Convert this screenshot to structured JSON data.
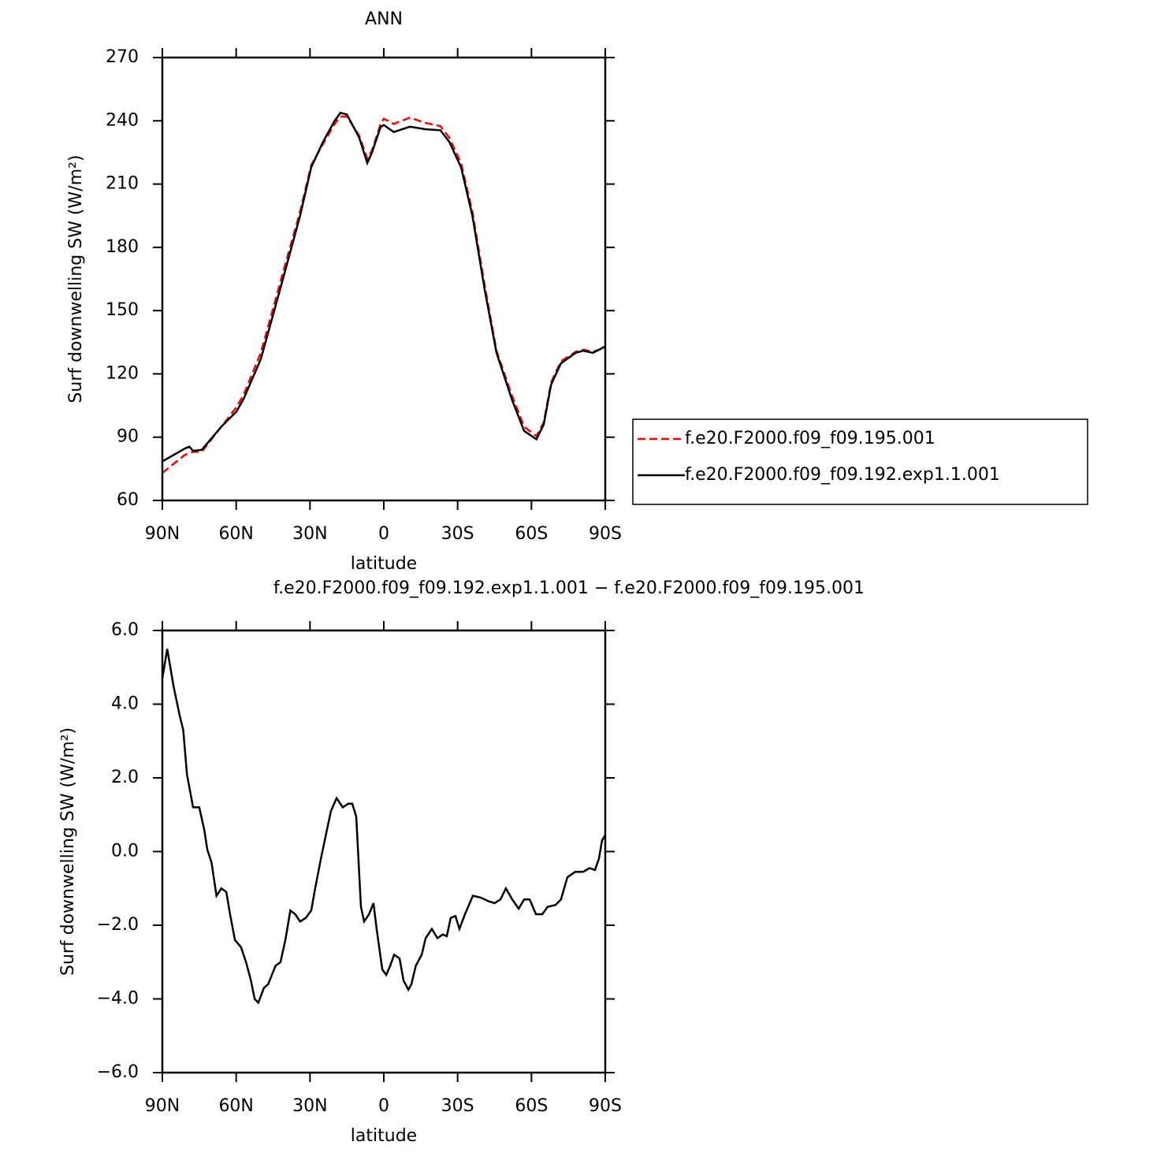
{
  "chart_data": [
    {
      "type": "line",
      "title": "ANN",
      "xlabel": "latitude",
      "ylabel": "Surf downwelling SW (W/m²)",
      "x": [
        90,
        81,
        79,
        77.5,
        74,
        66,
        60,
        57,
        50,
        45,
        41,
        34,
        29.5,
        24.7,
        20,
        17.6,
        15,
        10,
        6.7,
        4.8,
        1.3,
        0,
        -4,
        -10.6,
        -17,
        -23,
        -26.6,
        -31.4,
        -36,
        -41,
        -45.8,
        -52,
        -57,
        -62,
        -65,
        -68,
        -72,
        -78,
        -81,
        -85,
        -90
      ],
      "series": [
        {
          "name": "f.e20.F2000.f09_f09.195.001",
          "color": "#ff0000",
          "dash": "dashed",
          "values": [
            73,
            81.5,
            82.5,
            83,
            83,
            95,
            104,
            110,
            130,
            151,
            168,
            197,
            219,
            229,
            238.5,
            242,
            242,
            233,
            222,
            226,
            238.5,
            241,
            238.5,
            241.5,
            239,
            237.5,
            232,
            220,
            197,
            162,
            131,
            110,
            95,
            90.5,
            97,
            116,
            126,
            130.5,
            131.5,
            130.5,
            132.5
          ]
        },
        {
          "name": "f.e20.F2000.f09_f09.192.exp1.1.001",
          "color": "#000000",
          "dash": "solid",
          "values": [
            78.5,
            84.5,
            85.5,
            83.5,
            84,
            95,
            102,
            108,
            127,
            148,
            165,
            195,
            218,
            230,
            240,
            243.8,
            243,
            232,
            220,
            225,
            237,
            238,
            234.7,
            237.2,
            236,
            235.5,
            230,
            218,
            195,
            160,
            130,
            108,
            93,
            89,
            96,
            115,
            125,
            130,
            131,
            130,
            133
          ]
        }
      ],
      "xlim": [
        90,
        -90
      ],
      "xticks": [
        {
          "value": 90,
          "label": "90N"
        },
        {
          "value": 60,
          "label": "60N"
        },
        {
          "value": 30,
          "label": "30N"
        },
        0,
        {
          "value": -30,
          "label": "30S"
        },
        {
          "value": -60,
          "label": "60S"
        },
        {
          "value": -90,
          "label": "90S"
        }
      ],
      "ylim": [
        60,
        270
      ],
      "yticks": [
        60,
        90,
        120,
        150,
        180,
        210,
        240,
        270
      ],
      "legend": "outside-right"
    },
    {
      "type": "line",
      "title": "f.e20.F2000.f09_f09.192.exp1.1.001 − f.e20.F2000.f09_f09.195.001",
      "xlabel": "latitude",
      "ylabel": "Surf downwelling SW (W/m²)",
      "x": [
        90,
        88,
        85.5,
        83,
        81.5,
        80,
        77.5,
        75,
        73,
        71.7,
        70,
        68,
        66,
        64,
        62.5,
        60.5,
        58,
        56,
        54,
        52.5,
        51,
        48.7,
        47,
        44,
        42,
        40,
        38,
        36,
        34,
        31.7,
        29.5,
        27.9,
        25.6,
        23.7,
        21.5,
        19.2,
        16.7,
        14.4,
        12.8,
        11.2,
        9.3,
        8,
        6,
        4.2,
        2.9,
        0.6,
        -1,
        -2.6,
        -4.2,
        -6.4,
        -8,
        -10,
        -11.2,
        -13,
        -15.4,
        -17,
        -19.5,
        -21.8,
        -24,
        -25.6,
        -27.2,
        -29.1,
        -30.7,
        -33,
        -36.2,
        -39.4,
        -42.6,
        -45,
        -47.4,
        -49.6,
        -52.2,
        -54.8,
        -57,
        -59.3,
        -61.8,
        -64.4,
        -66.6,
        -69.8,
        -72,
        -74.6,
        -77.8,
        -81,
        -83.6,
        -85.8,
        -87.4,
        -88.7,
        -90
      ],
      "series": [
        {
          "name": "f.e20.F2000.f09_f09.192.exp1.1.001 − f.e20.F2000.f09_f09.195.001",
          "color": "#000000",
          "dash": "solid",
          "values": [
            4.7,
            5.5,
            4.5,
            3.7,
            3.3,
            2.1,
            1.2,
            1.2,
            0.6,
            0.05,
            -0.3,
            -1.2,
            -1.0,
            -1.1,
            -1.7,
            -2.4,
            -2.6,
            -3.0,
            -3.5,
            -4.0,
            -4.1,
            -3.7,
            -3.6,
            -3.1,
            -3.0,
            -2.4,
            -1.6,
            -1.7,
            -1.9,
            -1.8,
            -1.6,
            -1.0,
            -0.2,
            0.4,
            1.1,
            1.45,
            1.2,
            1.3,
            1.3,
            0.95,
            -1.5,
            -1.9,
            -1.7,
            -1.4,
            -2.1,
            -3.2,
            -3.35,
            -3.1,
            -2.8,
            -2.9,
            -3.5,
            -3.75,
            -3.6,
            -3.1,
            -2.8,
            -2.35,
            -2.1,
            -2.35,
            -2.25,
            -2.3,
            -1.8,
            -1.75,
            -2.1,
            -1.7,
            -1.2,
            -1.25,
            -1.35,
            -1.4,
            -1.3,
            -1.0,
            -1.3,
            -1.55,
            -1.3,
            -1.3,
            -1.7,
            -1.7,
            -1.5,
            -1.45,
            -1.3,
            -0.7,
            -0.55,
            -0.55,
            -0.45,
            -0.5,
            -0.2,
            0.3,
            0.45
          ]
        }
      ],
      "xlim": [
        90,
        -90
      ],
      "xticks": [
        {
          "value": 90,
          "label": "90N"
        },
        {
          "value": 60,
          "label": "60N"
        },
        {
          "value": 30,
          "label": "30N"
        },
        0,
        {
          "value": -30,
          "label": "30S"
        },
        {
          "value": -60,
          "label": "60S"
        },
        {
          "value": -90,
          "label": "90S"
        }
      ],
      "ylim": [
        -6,
        6
      ],
      "yticks": [
        {
          "value": -6,
          "label": "−6.0"
        },
        {
          "value": -4,
          "label": "−4.0"
        },
        {
          "value": -2,
          "label": "−2.0"
        },
        {
          "value": 0,
          "label": "0.0"
        },
        {
          "value": 2,
          "label": "2.0"
        },
        {
          "value": 4,
          "label": "4.0"
        },
        {
          "value": 6,
          "label": "6.0"
        }
      ]
    }
  ]
}
